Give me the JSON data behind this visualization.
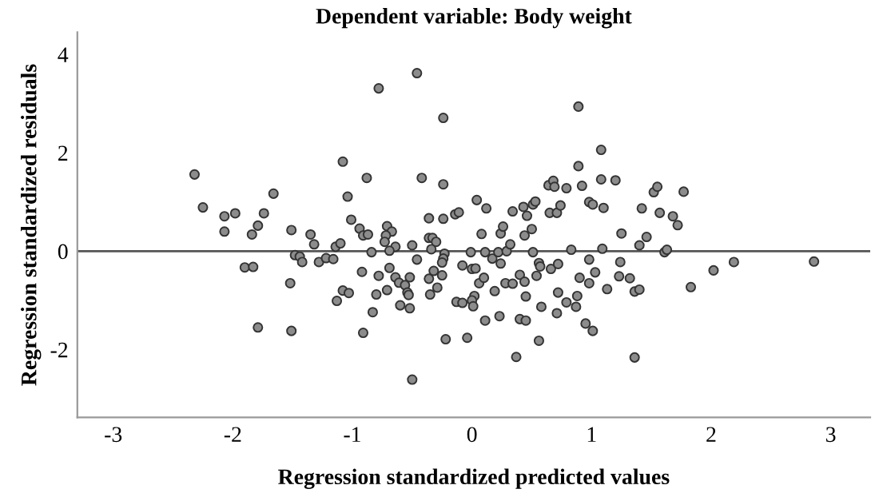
{
  "chart_data": {
    "type": "scatter",
    "title": "Dependent variable: Body weight",
    "xlabel": "Regression standardized predicted values",
    "ylabel": "Regression standardized residuals",
    "xlim": [
      -3.3,
      3.33
    ],
    "ylim": [
      -3.38,
      4.45
    ],
    "xticks": [
      -3,
      -2,
      -1,
      0,
      1,
      2,
      3
    ],
    "yticks": [
      -2,
      0,
      2,
      4
    ],
    "grid": false,
    "legend": false,
    "marker": "circle",
    "ref_lines": [
      {
        "axis": "y",
        "value": 0,
        "color": "#555555"
      }
    ],
    "series": [
      {
        "color": "#8c8c8c",
        "x": [
          -2.32,
          -2.25,
          -2.07,
          -1.98,
          -2.07,
          -1.66,
          -1.74,
          -1.79,
          -1.84,
          -1.9,
          -1.83,
          -1.79,
          -1.51,
          -1.35,
          -1.32,
          -1.48,
          -1.44,
          -1.42,
          -1.28,
          -1.22,
          -1.16,
          -1.14,
          -1.52,
          -1.51,
          -1.13,
          -0.46,
          -0.78,
          -0.24,
          -1.08,
          -0.88,
          -0.42,
          -0.24,
          -1.04,
          -1.01,
          -0.94,
          -0.91,
          -0.87,
          -0.71,
          -0.67,
          -0.72,
          -0.73,
          -0.64,
          -0.69,
          -1.1,
          -0.84,
          -0.5,
          -0.36,
          -0.24,
          -0.36,
          -0.33,
          -0.3,
          -0.34,
          -0.23,
          -0.24,
          -0.25,
          -0.46,
          -0.69,
          -0.92,
          -0.78,
          -0.64,
          -0.61,
          -0.56,
          -0.52,
          -0.71,
          -0.54,
          -0.53,
          -0.8,
          -1.08,
          -1.03,
          -0.83,
          -0.6,
          -0.52,
          -0.91,
          -0.5,
          -0.36,
          -0.32,
          -0.25,
          -0.35,
          -0.29,
          -0.22,
          -0.04,
          -0.08,
          0.0,
          0.03,
          -0.01,
          -0.13,
          -0.08,
          0.02,
          0.0,
          0.01,
          0.06,
          0.1,
          0.19,
          0.11,
          0.23,
          0.11,
          0.17,
          0.22,
          0.24,
          0.29,
          0.32,
          0.08,
          0.24,
          0.26,
          0.04,
          0.12,
          -0.14,
          -0.11,
          0.34,
          0.43,
          0.46,
          0.44,
          0.28,
          0.34,
          0.4,
          0.44,
          0.45,
          0.4,
          0.45,
          0.37,
          0.51,
          0.53,
          0.5,
          0.51,
          0.56,
          0.57,
          0.54,
          0.58,
          0.56,
          0.66,
          0.72,
          0.64,
          0.68,
          0.69,
          0.65,
          0.71,
          0.74,
          0.79,
          0.89,
          0.89,
          0.92,
          1.08,
          1.08,
          1.2,
          0.98,
          1.01,
          1.1,
          0.83,
          1.09,
          0.98,
          1.03,
          0.9,
          0.98,
          0.72,
          0.88,
          0.79,
          0.87,
          0.71,
          0.95,
          1.01,
          1.13,
          1.24,
          1.23,
          1.32,
          1.36,
          1.4,
          1.36,
          1.25,
          1.4,
          1.46,
          1.42,
          1.57,
          1.68,
          1.72,
          1.52,
          1.55,
          1.77,
          1.61,
          1.63,
          1.83,
          2.02,
          2.19,
          2.86
        ],
        "values": [
          1.56,
          0.89,
          0.71,
          0.77,
          0.4,
          1.17,
          0.77,
          0.52,
          0.34,
          -0.33,
          -0.32,
          -1.55,
          0.43,
          0.34,
          0.14,
          -0.08,
          -0.11,
          -0.22,
          -0.22,
          -0.14,
          -0.16,
          0.09,
          -0.65,
          -1.62,
          -1.01,
          3.62,
          3.31,
          2.71,
          1.82,
          1.49,
          1.49,
          1.36,
          1.11,
          0.64,
          0.46,
          0.32,
          0.34,
          0.51,
          0.4,
          0.32,
          0.19,
          0.09,
          0.01,
          0.16,
          -0.02,
          0.12,
          0.67,
          0.66,
          0.27,
          0.27,
          0.19,
          0.04,
          -0.05,
          -0.15,
          -0.23,
          -0.17,
          -0.34,
          -0.42,
          -0.5,
          -0.53,
          -0.64,
          -0.69,
          -0.53,
          -0.79,
          -0.84,
          -0.89,
          -0.88,
          -0.8,
          -0.85,
          -1.24,
          -1.1,
          -1.16,
          -1.66,
          -2.61,
          -0.56,
          -0.4,
          -0.49,
          -0.88,
          -0.74,
          -1.79,
          -1.76,
          -0.29,
          -0.36,
          -0.35,
          -0.02,
          -1.03,
          -1.05,
          -0.91,
          -1.0,
          -1.12,
          -0.65,
          -0.54,
          -0.81,
          -1.41,
          -1.32,
          -0.02,
          -0.15,
          -0.02,
          -0.25,
          0.0,
          0.14,
          0.35,
          0.36,
          0.5,
          1.04,
          0.87,
          0.75,
          0.79,
          0.81,
          0.9,
          0.72,
          0.32,
          -0.65,
          -0.66,
          -0.48,
          -0.62,
          -0.92,
          -1.38,
          -1.41,
          -2.15,
          0.95,
          1.01,
          0.45,
          -0.02,
          -0.24,
          -0.31,
          -0.5,
          -1.13,
          -1.82,
          -0.36,
          -0.26,
          1.34,
          1.43,
          1.31,
          0.78,
          0.78,
          0.93,
          1.28,
          2.94,
          1.73,
          1.33,
          2.06,
          1.46,
          1.44,
          1.0,
          0.95,
          0.88,
          0.03,
          0.05,
          -0.17,
          -0.43,
          -0.54,
          -0.65,
          -0.84,
          -0.91,
          -1.04,
          -1.13,
          -1.26,
          -1.47,
          -1.62,
          -0.77,
          -0.22,
          -0.51,
          -0.55,
          -0.82,
          -0.78,
          -2.16,
          0.36,
          0.12,
          0.29,
          0.87,
          0.78,
          0.71,
          0.53,
          1.2,
          1.31,
          1.21,
          -0.02,
          0.03,
          -0.73,
          -0.39,
          -0.22,
          -0.21
        ]
      }
    ]
  }
}
